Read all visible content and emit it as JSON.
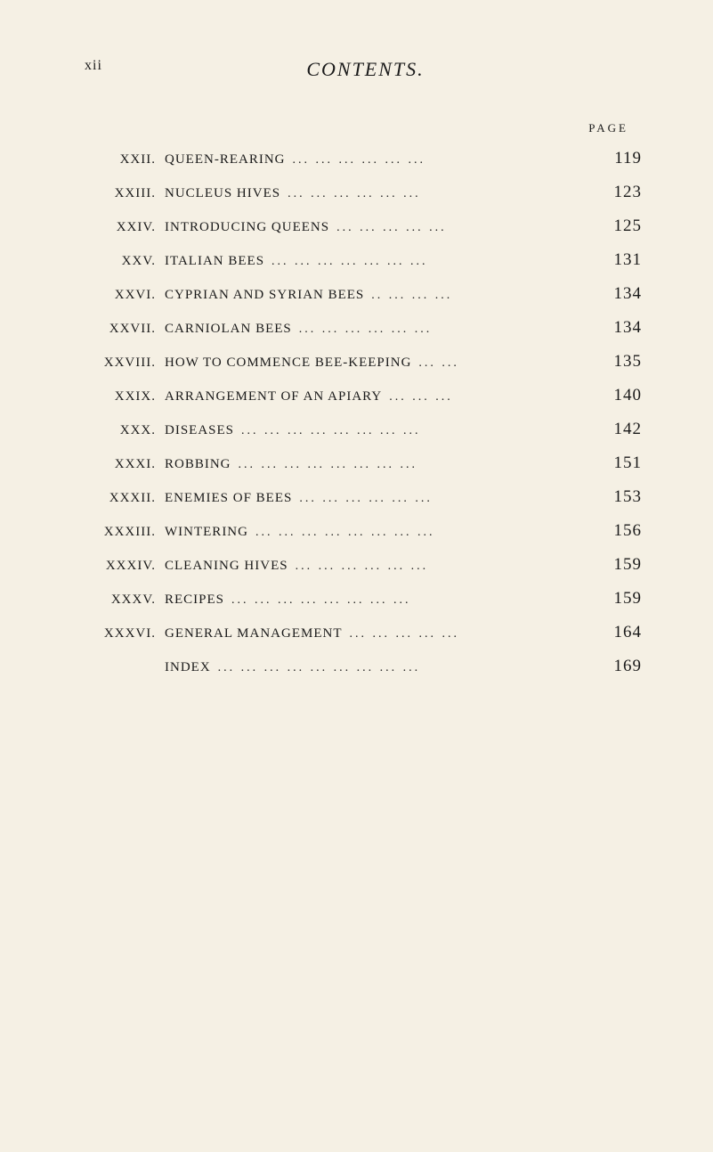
{
  "page": {
    "number": "xii",
    "title": "CONTENTS.",
    "header_label": "PAGE"
  },
  "entries": [
    {
      "num": "XXII.",
      "title": "QUEEN-REARING",
      "page": "119"
    },
    {
      "num": "XXIII.",
      "title": "NUCLEUS HIVES",
      "page": "123"
    },
    {
      "num": "XXIV.",
      "title": "INTRODUCING QUEENS",
      "page": "125"
    },
    {
      "num": "XXV.",
      "title": "ITALIAN BEES",
      "page": "131"
    },
    {
      "num": "XXVI.",
      "title": "CYPRIAN AND SYRIAN BEES",
      "page": "134"
    },
    {
      "num": "XXVII.",
      "title": "CARNIOLAN BEES",
      "page": "134"
    },
    {
      "num": "XXVIII.",
      "title": "HOW TO COMMENCE BEE-KEEPING",
      "page": "135"
    },
    {
      "num": "XXIX.",
      "title": "ARRANGEMENT OF AN APIARY",
      "page": "140"
    },
    {
      "num": "XXX.",
      "title": "DISEASES",
      "page": "142"
    },
    {
      "num": "XXXI.",
      "title": "ROBBING",
      "page": "151"
    },
    {
      "num": "XXXII.",
      "title": "ENEMIES OF BEES",
      "page": "153"
    },
    {
      "num": "XXXIII.",
      "title": "WINTERING",
      "page": "156"
    },
    {
      "num": "XXXIV.",
      "title": "CLEANING HIVES",
      "page": "159"
    },
    {
      "num": "XXXV.",
      "title": "RECIPES",
      "page": "159"
    },
    {
      "num": "XXXVI.",
      "title": "GENERAL MANAGEMENT",
      "page": "164"
    },
    {
      "num": "",
      "title": "INDEX",
      "page": "169"
    }
  ],
  "styling": {
    "background_color": "#f5f0e4",
    "text_color": "#1a1a1a",
    "title_fontsize": 22,
    "entry_fontsize": 15,
    "pagenum_fontsize": 19
  }
}
